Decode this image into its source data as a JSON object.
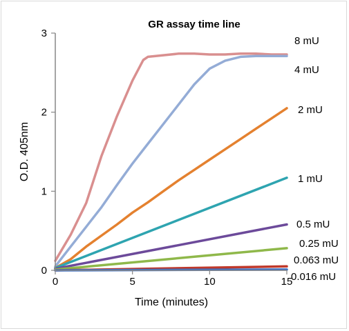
{
  "chart_data": {
    "type": "line",
    "title": "GR assay time line",
    "xlabel": "Time (minutes)",
    "ylabel": "O.D. 405nm",
    "xlim": [
      0,
      15
    ],
    "ylim": [
      0,
      3
    ],
    "x_ticks": [
      "0",
      "5",
      "10",
      "15"
    ],
    "y_ticks": [
      "0",
      "1",
      "2",
      "3"
    ],
    "grid": false,
    "legend": "none (series labels at right end of lines)",
    "series": [
      {
        "name": "8 mU",
        "color": "#d98f8f",
        "points": [
          [
            0,
            0.12
          ],
          [
            1,
            0.45
          ],
          [
            2,
            0.85
          ],
          [
            3,
            1.45
          ],
          [
            4,
            1.95
          ],
          [
            5,
            2.4
          ],
          [
            5.7,
            2.66
          ],
          [
            6,
            2.7
          ],
          [
            7,
            2.72
          ],
          [
            8,
            2.74
          ],
          [
            9,
            2.74
          ],
          [
            10,
            2.73
          ],
          [
            11,
            2.73
          ],
          [
            12,
            2.74
          ],
          [
            13,
            2.74
          ],
          [
            14,
            2.73
          ],
          [
            15,
            2.73
          ]
        ]
      },
      {
        "name": "4 mU",
        "color": "#94acd6",
        "points": [
          [
            0,
            0.05
          ],
          [
            1,
            0.3
          ],
          [
            2,
            0.55
          ],
          [
            3,
            0.8
          ],
          [
            4,
            1.08
          ],
          [
            5,
            1.35
          ],
          [
            6,
            1.6
          ],
          [
            7,
            1.85
          ],
          [
            8,
            2.1
          ],
          [
            9,
            2.35
          ],
          [
            10,
            2.55
          ],
          [
            11,
            2.65
          ],
          [
            12,
            2.7
          ],
          [
            13,
            2.71
          ],
          [
            14,
            2.71
          ],
          [
            15,
            2.71
          ]
        ]
      },
      {
        "name": "2 mU",
        "color": "#e4812f",
        "points": [
          [
            0,
            0.03
          ],
          [
            1,
            0.14
          ],
          [
            2,
            0.3
          ],
          [
            3,
            0.44
          ],
          [
            4,
            0.58
          ],
          [
            5,
            0.73
          ],
          [
            6,
            0.86
          ],
          [
            7,
            1.0
          ],
          [
            8,
            1.14
          ],
          [
            9,
            1.27
          ],
          [
            10,
            1.4
          ],
          [
            11,
            1.53
          ],
          [
            12,
            1.66
          ],
          [
            13,
            1.79
          ],
          [
            14,
            1.92
          ],
          [
            15,
            2.05
          ]
        ]
      },
      {
        "name": "1 mU",
        "color": "#2ea4b0",
        "points": [
          [
            0,
            0.03
          ],
          [
            15,
            1.17
          ]
        ]
      },
      {
        "name": "0.5 mU",
        "color": "#6c4a9a",
        "points": [
          [
            0,
            0.02
          ],
          [
            15,
            0.58
          ]
        ]
      },
      {
        "name": "0.25 mU",
        "color": "#8fb84a",
        "points": [
          [
            0,
            0.01
          ],
          [
            15,
            0.28
          ]
        ]
      },
      {
        "name": "0.063 mU",
        "color": "#c0392b",
        "points": [
          [
            0,
            0.0
          ],
          [
            15,
            0.05
          ]
        ]
      },
      {
        "name": "0.016 mU",
        "color": "#3b6fc4",
        "points": [
          [
            0,
            0.0
          ],
          [
            15,
            0.01
          ]
        ]
      }
    ]
  }
}
